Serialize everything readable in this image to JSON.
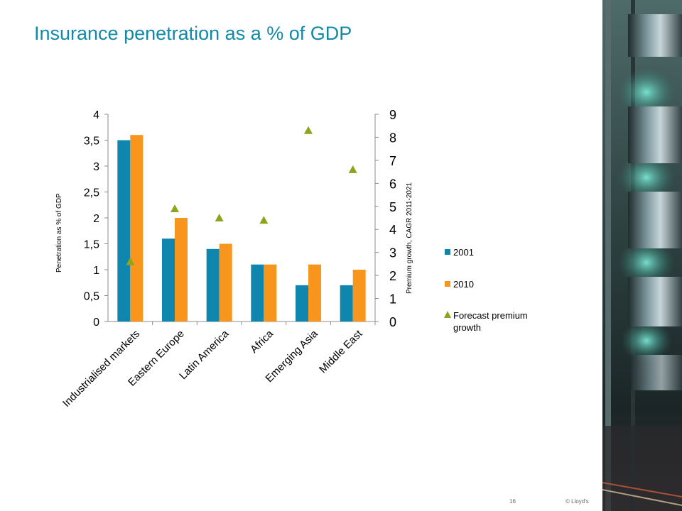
{
  "slide": {
    "title": "Insurance penetration as a % of GDP",
    "page_number": "16",
    "copyright": "© Lloyd's"
  },
  "colors": {
    "title": "#1389a7",
    "series_2001": "#0e86ae",
    "series_2010": "#f7951d",
    "forecast": "#8fa41c"
  },
  "chart_data": {
    "type": "bar",
    "categories": [
      "Industrialised markets",
      "Eastern Europe",
      "Latin America",
      "Africa",
      "Emerging Asia",
      "Middle East"
    ],
    "series": [
      {
        "name": "2001",
        "axis": "left",
        "type": "bar",
        "color": "#0e86ae",
        "values": [
          3.5,
          1.6,
          1.4,
          1.1,
          0.7,
          0.7
        ]
      },
      {
        "name": "2010",
        "axis": "left",
        "type": "bar",
        "color": "#f7951d",
        "values": [
          3.6,
          2.0,
          1.5,
          1.1,
          1.1,
          1.0
        ]
      },
      {
        "name": "Forecast premium growth",
        "axis": "right",
        "type": "marker",
        "marker": "triangle",
        "color": "#8fa41c",
        "values": [
          2.6,
          4.9,
          4.5,
          4.4,
          8.3,
          6.6
        ]
      }
    ],
    "ylabel": "Penetration as % of GDP",
    "y2label": "Premium growth, CAGR 2011-2021",
    "ylim": [
      0,
      4
    ],
    "y2lim": [
      0,
      9
    ],
    "yticks": [
      "0",
      "0,5",
      "1",
      "1,5",
      "2",
      "2,5",
      "3",
      "3,5",
      "4"
    ],
    "y2ticks": [
      "0",
      "1",
      "2",
      "3",
      "4",
      "5",
      "6",
      "7",
      "8",
      "9"
    ],
    "grid": false,
    "legend_position": "right"
  }
}
